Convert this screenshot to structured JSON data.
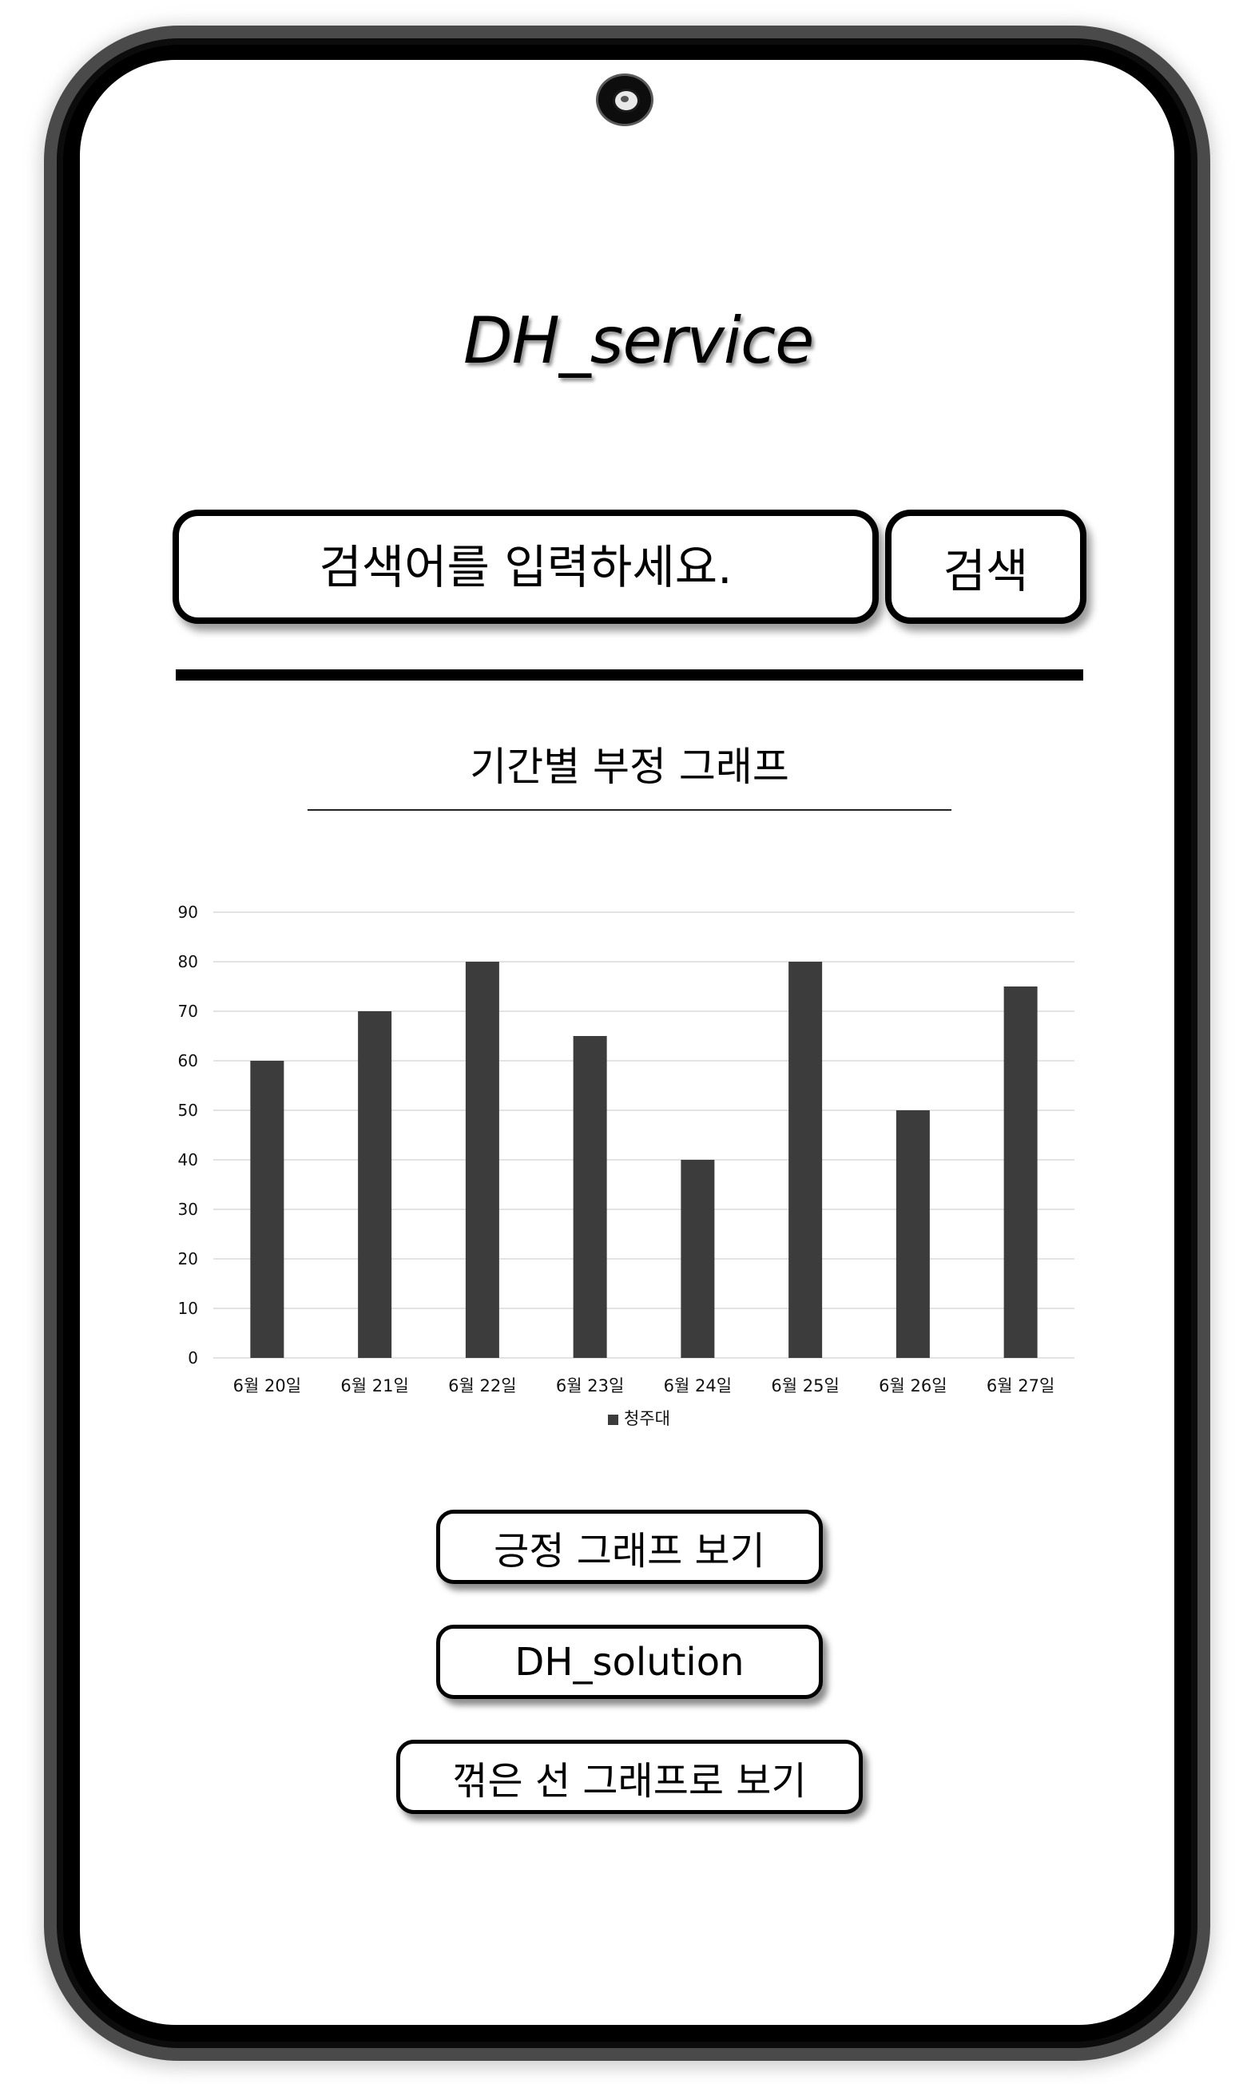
{
  "app": {
    "title": "DH_service"
  },
  "search": {
    "placeholder": "검색어를 입력하세요.",
    "button_label": "검색"
  },
  "chart_section": {
    "heading": "기간별 부정 그래프"
  },
  "chart_data": {
    "type": "bar",
    "categories": [
      "6월 20일",
      "6월 21일",
      "6월 22일",
      "6월 23일",
      "6월 24일",
      "6월 25일",
      "6월 26일",
      "6월 27일"
    ],
    "series": [
      {
        "name": "청주대",
        "values": [
          60,
          70,
          80,
          65,
          40,
          80,
          50,
          75
        ]
      }
    ],
    "ylim": [
      0,
      90
    ],
    "yticks": [
      0,
      10,
      20,
      30,
      40,
      50,
      60,
      70,
      80,
      90
    ],
    "grid": true,
    "legend_position": "bottom",
    "bar_color": "#3c3c3c",
    "grid_color": "#e3e3e3"
  },
  "actions": {
    "positive_graph_label": "긍정 그래프 보기",
    "solution_label": "DH_solution",
    "line_graph_label": "꺾은 선 그래프로 보기"
  },
  "icons": {
    "camera": "front-camera-icon"
  }
}
